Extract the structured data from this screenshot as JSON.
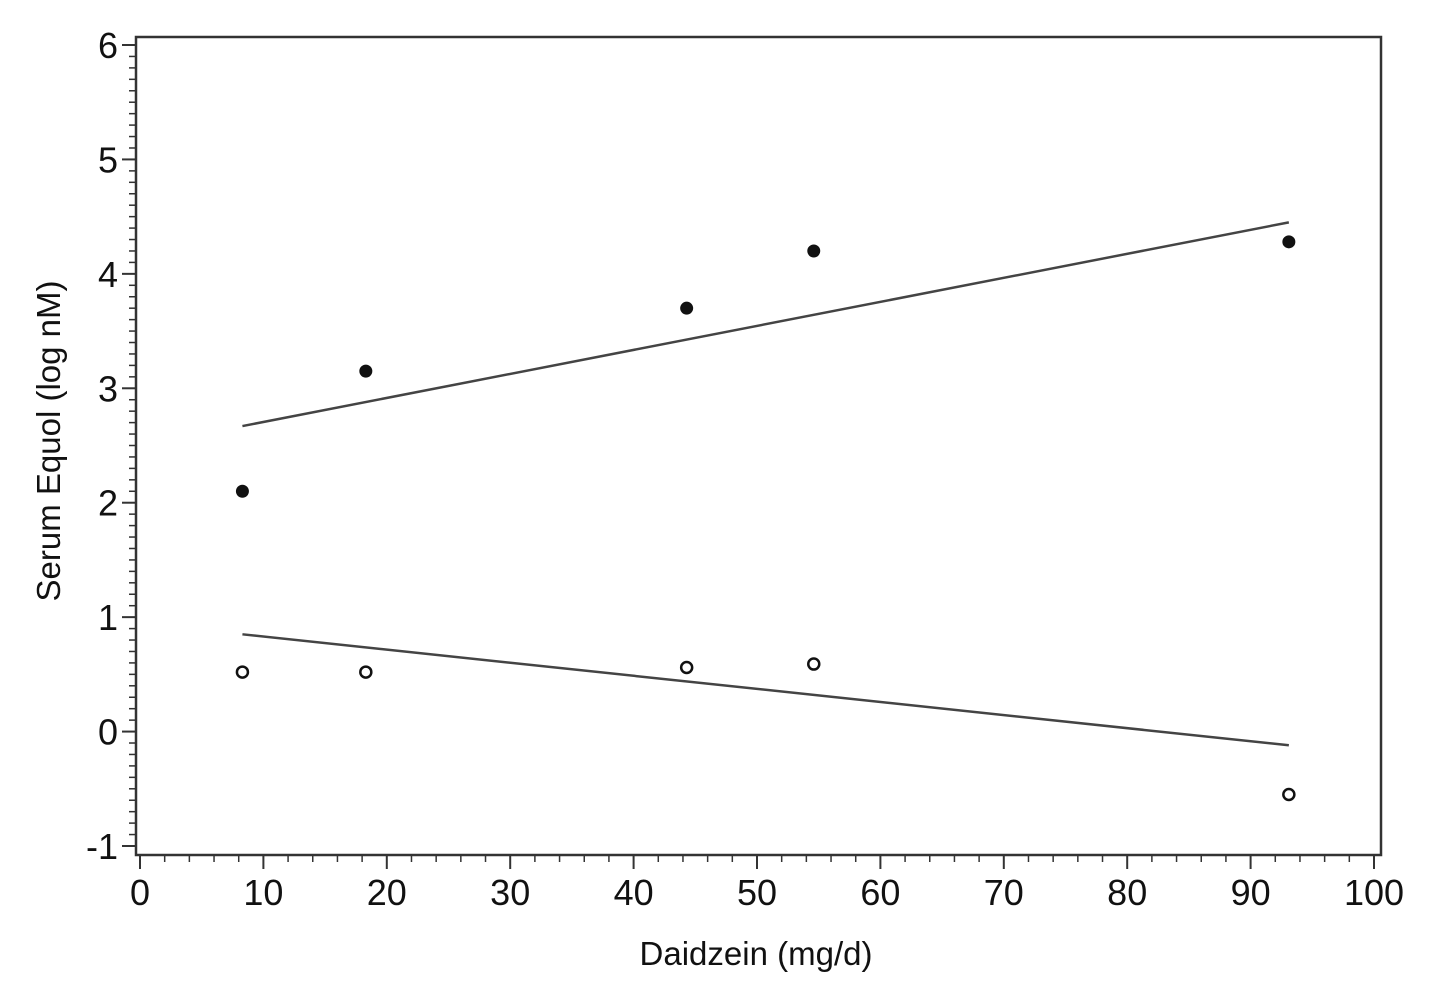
{
  "chart_data": {
    "type": "scatter",
    "title": "",
    "xlabel": "Daidzein (mg/d)",
    "ylabel": "Serum Equol (log nM)",
    "xlim": [
      0,
      100
    ],
    "ylim": [
      -1,
      6
    ],
    "xticks": [
      0,
      10,
      20,
      30,
      40,
      50,
      60,
      70,
      80,
      90,
      100
    ],
    "yticks": [
      -1,
      0,
      1,
      2,
      3,
      4,
      5,
      6
    ],
    "xtick_labels": [
      "0",
      "10",
      "20",
      "30",
      "40",
      "50",
      "60",
      "70",
      "80",
      "90",
      "100"
    ],
    "ytick_labels": [
      "-1",
      "0",
      "1",
      "2",
      "3",
      "4",
      "5",
      "6"
    ],
    "grid": false,
    "series": [
      {
        "marker": "filled-circle",
        "color": "#111111",
        "x": [
          8.3,
          18.3,
          44.3,
          54.6,
          93.1
        ],
        "y": [
          2.1,
          3.15,
          3.7,
          4.2,
          4.28
        ],
        "fit_line": {
          "x": [
            8.3,
            93.1
          ],
          "y": [
            2.67,
            4.45
          ]
        }
      },
      {
        "marker": "open-circle",
        "color": "#111111",
        "x": [
          8.3,
          18.3,
          44.3,
          54.6,
          93.1
        ],
        "y": [
          0.52,
          0.52,
          0.56,
          0.59,
          -0.55
        ],
        "fit_line": {
          "x": [
            8.3,
            93.1
          ],
          "y": [
            0.85,
            -0.12
          ]
        }
      }
    ]
  }
}
